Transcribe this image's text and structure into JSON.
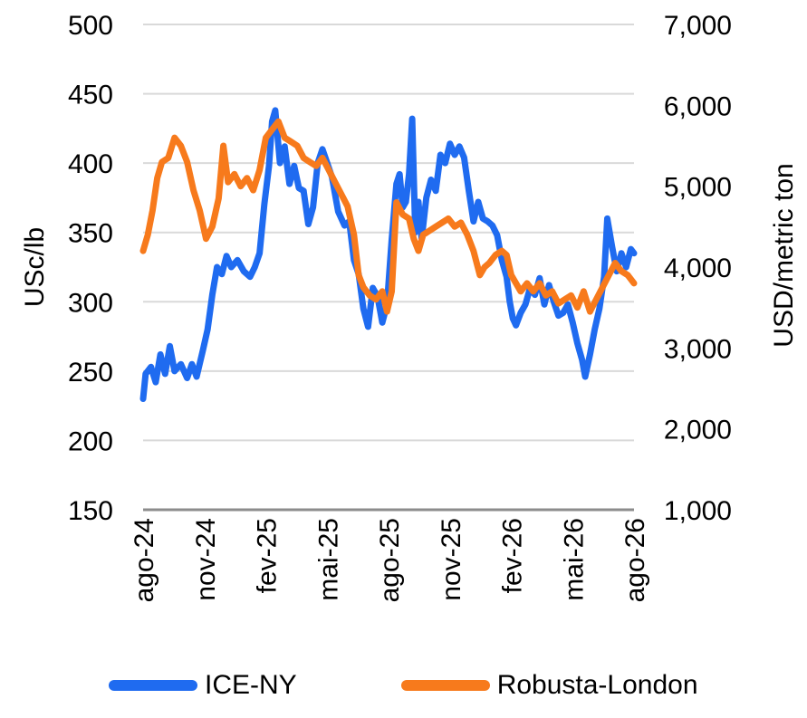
{
  "chart_data": {
    "type": "line",
    "x_labels": [
      "ago-24",
      "nov-24",
      "fev-25",
      "mai-25",
      "ago-25",
      "nov-25",
      "fev-26",
      "mai-26",
      "ago-26"
    ],
    "y_left": {
      "label": "USc/lb",
      "min": 150,
      "max": 500,
      "ticks": [
        "150",
        "200",
        "250",
        "300",
        "350",
        "400",
        "450",
        "500"
      ]
    },
    "y_right": {
      "label": "USD/metric ton",
      "min": 1000,
      "max": 7000,
      "ticks": [
        "1,000",
        "2,000",
        "3,000",
        "4,000",
        "5,000",
        "6,000",
        "7,000"
      ]
    },
    "grid": true,
    "legend_position": "bottom",
    "series": [
      {
        "name": "ICE-NY",
        "axis": "left",
        "color": "#1f6bf0",
        "points": [
          [
            0.0,
            230
          ],
          [
            0.08,
            248
          ],
          [
            0.25,
            253
          ],
          [
            0.4,
            242
          ],
          [
            0.55,
            262
          ],
          [
            0.7,
            248
          ],
          [
            0.85,
            268
          ],
          [
            1.0,
            250
          ],
          [
            1.2,
            255
          ],
          [
            1.4,
            245
          ],
          [
            1.55,
            255
          ],
          [
            1.7,
            246
          ],
          [
            1.9,
            265
          ],
          [
            2.05,
            280
          ],
          [
            2.2,
            305
          ],
          [
            2.35,
            325
          ],
          [
            2.5,
            320
          ],
          [
            2.65,
            333
          ],
          [
            2.8,
            325
          ],
          [
            3.0,
            330
          ],
          [
            3.2,
            322
          ],
          [
            3.4,
            318
          ],
          [
            3.55,
            325
          ],
          [
            3.7,
            335
          ],
          [
            3.85,
            370
          ],
          [
            4.0,
            398
          ],
          [
            4.1,
            430
          ],
          [
            4.2,
            438
          ],
          [
            4.35,
            400
          ],
          [
            4.5,
            412
          ],
          [
            4.65,
            385
          ],
          [
            4.8,
            398
          ],
          [
            4.95,
            382
          ],
          [
            5.1,
            380
          ],
          [
            5.25,
            356
          ],
          [
            5.4,
            368
          ],
          [
            5.55,
            400
          ],
          [
            5.7,
            410
          ],
          [
            5.85,
            400
          ],
          [
            6.0,
            390
          ],
          [
            6.2,
            365
          ],
          [
            6.4,
            355
          ],
          [
            6.55,
            358
          ],
          [
            6.7,
            330
          ],
          [
            6.85,
            320
          ],
          [
            7.0,
            295
          ],
          [
            7.15,
            282
          ],
          [
            7.3,
            310
          ],
          [
            7.45,
            304
          ],
          [
            7.6,
            285
          ],
          [
            7.75,
            298
          ],
          [
            7.9,
            345
          ],
          [
            8.05,
            385
          ],
          [
            8.15,
            392
          ],
          [
            8.25,
            368
          ],
          [
            8.35,
            372
          ],
          [
            8.45,
            392
          ],
          [
            8.55,
            432
          ],
          [
            8.65,
            350
          ],
          [
            8.75,
            372
          ],
          [
            8.85,
            345
          ],
          [
            9.0,
            375
          ],
          [
            9.15,
            388
          ],
          [
            9.3,
            380
          ],
          [
            9.45,
            406
          ],
          [
            9.6,
            400
          ],
          [
            9.75,
            414
          ],
          [
            9.9,
            406
          ],
          [
            10.05,
            412
          ],
          [
            10.2,
            404
          ],
          [
            10.35,
            380
          ],
          [
            10.5,
            358
          ],
          [
            10.65,
            372
          ],
          [
            10.8,
            360
          ],
          [
            10.95,
            358
          ],
          [
            11.1,
            355
          ],
          [
            11.25,
            348
          ],
          [
            11.4,
            330
          ],
          [
            11.55,
            318
          ],
          [
            11.65,
            300
          ],
          [
            11.75,
            288
          ],
          [
            11.85,
            283
          ],
          [
            12.0,
            292
          ],
          [
            12.15,
            298
          ],
          [
            12.3,
            310
          ],
          [
            12.45,
            305
          ],
          [
            12.6,
            317
          ],
          [
            12.75,
            298
          ],
          [
            12.9,
            312
          ],
          [
            13.05,
            300
          ],
          [
            13.2,
            290
          ],
          [
            13.35,
            292
          ],
          [
            13.5,
            298
          ],
          [
            13.65,
            285
          ],
          [
            13.8,
            270
          ],
          [
            13.95,
            258
          ],
          [
            14.05,
            246
          ],
          [
            14.2,
            262
          ],
          [
            14.35,
            280
          ],
          [
            14.5,
            295
          ],
          [
            14.65,
            318
          ],
          [
            14.75,
            360
          ],
          [
            14.9,
            340
          ],
          [
            15.05,
            322
          ],
          [
            15.2,
            335
          ],
          [
            15.35,
            325
          ],
          [
            15.5,
            338
          ],
          [
            15.6,
            335
          ]
        ]
      },
      {
        "name": "Robusta-London",
        "axis": "right",
        "color": "#f77a1c",
        "points": [
          [
            0.0,
            4200
          ],
          [
            0.15,
            4400
          ],
          [
            0.3,
            4700
          ],
          [
            0.45,
            5100
          ],
          [
            0.6,
            5300
          ],
          [
            0.8,
            5350
          ],
          [
            1.0,
            5600
          ],
          [
            1.2,
            5500
          ],
          [
            1.4,
            5300
          ],
          [
            1.6,
            4950
          ],
          [
            1.8,
            4700
          ],
          [
            2.0,
            4350
          ],
          [
            2.2,
            4500
          ],
          [
            2.4,
            4850
          ],
          [
            2.55,
            5500
          ],
          [
            2.7,
            5050
          ],
          [
            2.9,
            5150
          ],
          [
            3.1,
            5000
          ],
          [
            3.3,
            5100
          ],
          [
            3.5,
            4950
          ],
          [
            3.7,
            5200
          ],
          [
            3.9,
            5600
          ],
          [
            4.1,
            5700
          ],
          [
            4.3,
            5800
          ],
          [
            4.5,
            5600
          ],
          [
            4.7,
            5550
          ],
          [
            4.9,
            5500
          ],
          [
            5.1,
            5350
          ],
          [
            5.3,
            5300
          ],
          [
            5.5,
            5250
          ],
          [
            5.7,
            5350
          ],
          [
            5.9,
            5200
          ],
          [
            6.1,
            5050
          ],
          [
            6.3,
            4900
          ],
          [
            6.5,
            4750
          ],
          [
            6.7,
            4400
          ],
          [
            6.85,
            3900
          ],
          [
            7.0,
            3750
          ],
          [
            7.2,
            3650
          ],
          [
            7.4,
            3600
          ],
          [
            7.6,
            3700
          ],
          [
            7.75,
            3450
          ],
          [
            7.9,
            3700
          ],
          [
            8.05,
            4800
          ],
          [
            8.25,
            4650
          ],
          [
            8.45,
            4600
          ],
          [
            8.6,
            4350
          ],
          [
            8.75,
            4200
          ],
          [
            8.9,
            4400
          ],
          [
            9.1,
            4450
          ],
          [
            9.3,
            4500
          ],
          [
            9.5,
            4550
          ],
          [
            9.7,
            4600
          ],
          [
            9.9,
            4500
          ],
          [
            10.1,
            4550
          ],
          [
            10.3,
            4400
          ],
          [
            10.5,
            4200
          ],
          [
            10.7,
            3900
          ],
          [
            10.85,
            4000
          ],
          [
            11.0,
            4050
          ],
          [
            11.2,
            4150
          ],
          [
            11.4,
            4200
          ],
          [
            11.55,
            4150
          ],
          [
            11.7,
            3900
          ],
          [
            11.85,
            3800
          ],
          [
            12.0,
            3700
          ],
          [
            12.2,
            3800
          ],
          [
            12.4,
            3700
          ],
          [
            12.6,
            3800
          ],
          [
            12.8,
            3650
          ],
          [
            13.0,
            3700
          ],
          [
            13.2,
            3550
          ],
          [
            13.4,
            3600
          ],
          [
            13.6,
            3650
          ],
          [
            13.8,
            3500
          ],
          [
            14.0,
            3700
          ],
          [
            14.2,
            3450
          ],
          [
            14.4,
            3600
          ],
          [
            14.6,
            3750
          ],
          [
            14.8,
            3900
          ],
          [
            15.0,
            4050
          ],
          [
            15.2,
            3950
          ],
          [
            15.4,
            3900
          ],
          [
            15.6,
            3800
          ]
        ]
      }
    ]
  }
}
